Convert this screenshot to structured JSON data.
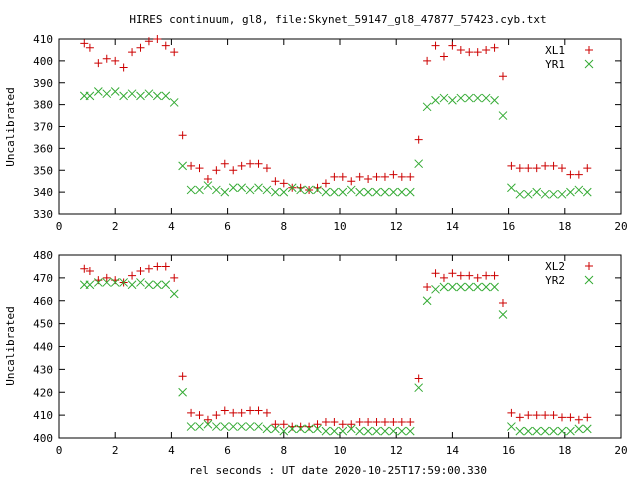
{
  "colors": {
    "series1": "#cc0000",
    "series2": "#33aa33"
  },
  "chart_data": [
    {
      "type": "scatter",
      "title": "HIRES continuum, gl8, file:Skynet_59147_gl8_47877_57423.cyb.txt",
      "xlabel": "",
      "ylabel": "Uncalibrated",
      "xlim": [
        0,
        20
      ],
      "ylim": [
        330,
        410
      ],
      "xticks": [
        0,
        2,
        4,
        6,
        8,
        10,
        12,
        14,
        16,
        18,
        20
      ],
      "yticks": [
        330,
        340,
        350,
        360,
        370,
        380,
        390,
        400,
        410
      ],
      "legend_position": "top-right",
      "series": [
        {
          "name": "XL1",
          "marker": "plus",
          "x": [
            0.9,
            1.1,
            1.4,
            1.7,
            2.0,
            2.3,
            2.6,
            2.9,
            3.2,
            3.5,
            3.8,
            4.1,
            4.4,
            4.7,
            5.0,
            5.3,
            5.6,
            5.9,
            6.2,
            6.5,
            6.8,
            7.1,
            7.4,
            7.7,
            8.0,
            8.3,
            8.6,
            8.9,
            9.2,
            9.5,
            9.8,
            10.1,
            10.4,
            10.7,
            11.0,
            11.3,
            11.6,
            11.9,
            12.2,
            12.5,
            12.8,
            13.1,
            13.4,
            13.7,
            14.0,
            14.3,
            14.6,
            14.9,
            15.2,
            15.5,
            15.8,
            16.1,
            16.4,
            16.7,
            17.0,
            17.3,
            17.6,
            17.9,
            18.2,
            18.5,
            18.8
          ],
          "y": [
            408,
            406,
            399,
            401,
            400,
            397,
            404,
            406,
            409,
            410,
            407,
            404,
            366,
            352,
            351,
            346,
            350,
            353,
            350,
            352,
            353,
            353,
            351,
            345,
            344,
            342,
            342,
            341,
            342,
            344,
            347,
            347,
            345,
            347,
            346,
            347,
            347,
            348,
            347,
            347,
            364,
            400,
            407,
            402,
            407,
            405,
            404,
            404,
            405,
            406,
            393,
            352,
            351,
            351,
            351,
            352,
            352,
            351,
            348,
            348,
            351
          ]
        },
        {
          "name": "YR1",
          "marker": "cross",
          "x": [
            0.9,
            1.1,
            1.4,
            1.7,
            2.0,
            2.3,
            2.6,
            2.9,
            3.2,
            3.5,
            3.8,
            4.1,
            4.4,
            4.7,
            5.0,
            5.3,
            5.6,
            5.9,
            6.2,
            6.5,
            6.8,
            7.1,
            7.4,
            7.7,
            8.0,
            8.3,
            8.6,
            8.9,
            9.2,
            9.5,
            9.8,
            10.1,
            10.4,
            10.7,
            11.0,
            11.3,
            11.6,
            11.9,
            12.2,
            12.5,
            12.8,
            13.1,
            13.4,
            13.7,
            14.0,
            14.3,
            14.6,
            14.9,
            15.2,
            15.5,
            15.8,
            16.1,
            16.4,
            16.7,
            17.0,
            17.3,
            17.6,
            17.9,
            18.2,
            18.5,
            18.8
          ],
          "y": [
            384,
            384,
            386,
            385,
            386,
            384,
            385,
            384,
            385,
            384,
            384,
            381,
            352,
            341,
            341,
            343,
            341,
            340,
            342,
            342,
            341,
            342,
            341,
            340,
            340,
            342,
            341,
            341,
            341,
            340,
            340,
            340,
            341,
            340,
            340,
            340,
            340,
            340,
            340,
            340,
            353,
            379,
            382,
            383,
            382,
            383,
            383,
            383,
            383,
            382,
            375,
            342,
            339,
            339,
            340,
            339,
            339,
            339,
            340,
            341,
            340
          ]
        }
      ]
    },
    {
      "type": "scatter",
      "title": "",
      "xlabel": "rel seconds : UT date 2020-10-25T17:59:00.330",
      "ylabel": "Uncalibrated",
      "xlim": [
        0,
        20
      ],
      "ylim": [
        400,
        480
      ],
      "xticks": [
        0,
        2,
        4,
        6,
        8,
        10,
        12,
        14,
        16,
        18,
        20
      ],
      "yticks": [
        400,
        410,
        420,
        430,
        440,
        450,
        460,
        470,
        480
      ],
      "legend_position": "top-right",
      "series": [
        {
          "name": "XL2",
          "marker": "plus",
          "x": [
            0.9,
            1.1,
            1.4,
            1.7,
            2.0,
            2.3,
            2.6,
            2.9,
            3.2,
            3.5,
            3.8,
            4.1,
            4.4,
            4.7,
            5.0,
            5.3,
            5.6,
            5.9,
            6.2,
            6.5,
            6.8,
            7.1,
            7.4,
            7.7,
            8.0,
            8.3,
            8.6,
            8.9,
            9.2,
            9.5,
            9.8,
            10.1,
            10.4,
            10.7,
            11.0,
            11.3,
            11.6,
            11.9,
            12.2,
            12.5,
            12.8,
            13.1,
            13.4,
            13.7,
            14.0,
            14.3,
            14.6,
            14.9,
            15.2,
            15.5,
            15.8,
            16.1,
            16.4,
            16.7,
            17.0,
            17.3,
            17.6,
            17.9,
            18.2,
            18.5,
            18.8
          ],
          "y": [
            474,
            473,
            469,
            470,
            469,
            468,
            471,
            473,
            474,
            475,
            475,
            470,
            427,
            411,
            410,
            408,
            410,
            412,
            411,
            411,
            412,
            412,
            411,
            406,
            406,
            405,
            405,
            405,
            406,
            407,
            407,
            406,
            406,
            407,
            407,
            407,
            407,
            407,
            407,
            407,
            426,
            466,
            472,
            470,
            472,
            471,
            471,
            470,
            471,
            471,
            459,
            411,
            409,
            410,
            410,
            410,
            410,
            409,
            409,
            408,
            409
          ]
        },
        {
          "name": "YR2",
          "marker": "cross",
          "x": [
            0.9,
            1.1,
            1.4,
            1.7,
            2.0,
            2.3,
            2.6,
            2.9,
            3.2,
            3.5,
            3.8,
            4.1,
            4.4,
            4.7,
            5.0,
            5.3,
            5.6,
            5.9,
            6.2,
            6.5,
            6.8,
            7.1,
            7.4,
            7.7,
            8.0,
            8.3,
            8.6,
            8.9,
            9.2,
            9.5,
            9.8,
            10.1,
            10.4,
            10.7,
            11.0,
            11.3,
            11.6,
            11.9,
            12.2,
            12.5,
            12.8,
            13.1,
            13.4,
            13.7,
            14.0,
            14.3,
            14.6,
            14.9,
            15.2,
            15.5,
            15.8,
            16.1,
            16.4,
            16.7,
            17.0,
            17.3,
            17.6,
            17.9,
            18.2,
            18.5,
            18.8
          ],
          "y": [
            467,
            467,
            468,
            468,
            468,
            468,
            467,
            468,
            467,
            467,
            467,
            463,
            420,
            405,
            405,
            406,
            405,
            405,
            405,
            405,
            405,
            405,
            404,
            404,
            403,
            404,
            404,
            404,
            404,
            403,
            403,
            403,
            404,
            403,
            403,
            403,
            403,
            403,
            403,
            403,
            422,
            460,
            465,
            466,
            466,
            466,
            466,
            466,
            466,
            466,
            454,
            405,
            403,
            403,
            403,
            403,
            403,
            403,
            403,
            404,
            404
          ]
        }
      ]
    }
  ]
}
